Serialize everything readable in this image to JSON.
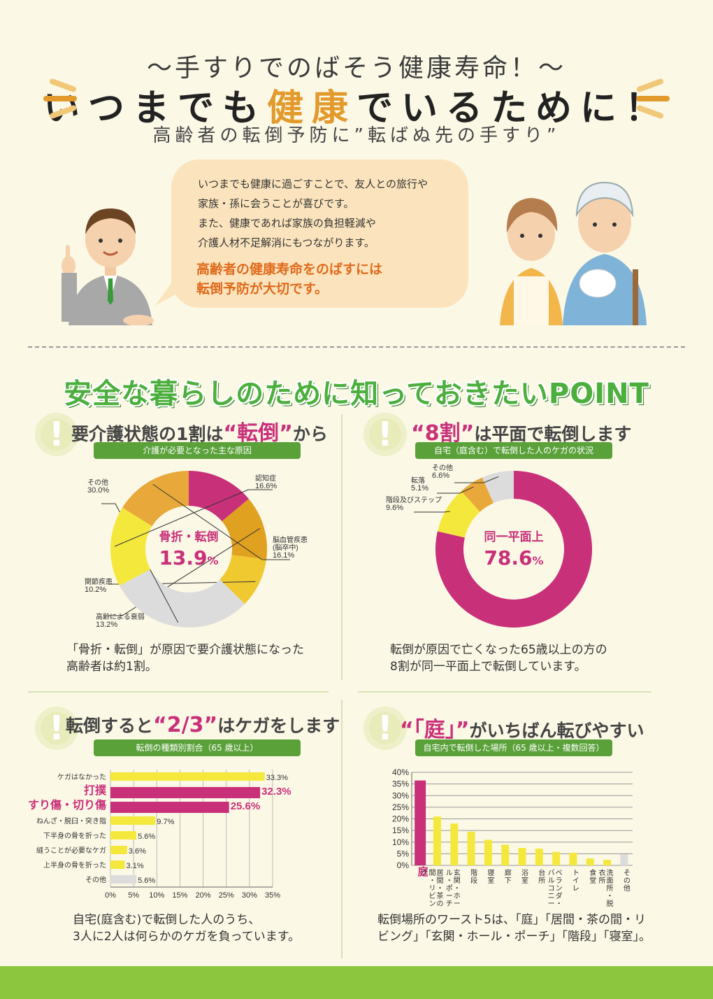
{
  "header": {
    "subtitle": "～手すりでのばそう健康寿命！～",
    "title_part1": "いつまでも",
    "title_highlight": "健康",
    "title_part2": "でいるために！",
    "tagline": "高齢者の転倒予防に”転ばぬ先の手すり”"
  },
  "speech": {
    "lines": [
      "いつまでも健康に過ごすことで、友人との旅行や",
      "家族・孫に会うことが喜びです。",
      "また、健康であれば家族の負担軽減や",
      "介護人材不足解消にもつながります。"
    ],
    "emphasis": [
      "高齢者の健康寿命をのばすには",
      "転倒予防が大切です。"
    ]
  },
  "section_title": "安全な暮らしのために知っておきたいPOINT",
  "points": [
    {
      "title_pre": "要介護状態の1割は",
      "title_key": "“転倒”",
      "title_post": "から",
      "bar": "介護が必要となった主な原因",
      "caption": [
        "「骨折・転倒」が原因で要介護状態になった",
        "高齢者は約1割。"
      ]
    },
    {
      "title_pre": "",
      "title_key": "“8割”",
      "title_post": "は平面で転倒します",
      "bar": "自宅（庭含む）で転倒した人のケガの状況",
      "caption": [
        "転倒が原因で亡くなった65歳以上の方の",
        "8割が同一平面上で転倒しています。"
      ]
    },
    {
      "title_pre": "転倒すると",
      "title_key": "“2/3”",
      "title_post": "はケガをします",
      "bar": "転倒の種類別割合（65 歳以上）",
      "caption": [
        "自宅(庭含む)で転倒した人のうち、",
        "3人に2人は何らかのケガを負っています。"
      ]
    },
    {
      "title_pre": "",
      "title_key": "“「庭」”",
      "title_post": "がいちばん転びやすい",
      "bar": "自宅内で転倒した場所（65 歳以上・複数回答）",
      "caption": [
        "転倒場所のワースト5は、「庭」「居間・茶の間・リ",
        "ビング」「玄関・ホール・ポーチ」「階段」「寝室」。"
      ]
    }
  ],
  "chart_data": [
    {
      "type": "pie",
      "center_label": "骨折・転倒",
      "center_value": "13.9",
      "center_unit": "%",
      "slices": [
        {
          "label": "骨折・転倒",
          "value": 13.9,
          "color": "#c9307a"
        },
        {
          "label": "高齢による衰弱",
          "value": 13.2,
          "color": "#e0a020"
        },
        {
          "label": "関節疾患",
          "value": 10.2,
          "color": "#f0c830"
        },
        {
          "label": "その他",
          "value": 30.0,
          "color": "#dcdcdc"
        },
        {
          "label": "認知症",
          "value": 16.6,
          "color": "#f5e83c"
        },
        {
          "label": "脳血管疾患\n(脳卒中)",
          "value": 16.1,
          "color": "#e8a83a"
        }
      ]
    },
    {
      "type": "pie",
      "center_label": "同一平面上",
      "center_value": "78.6",
      "center_unit": "%",
      "slices": [
        {
          "label": "同一平面上",
          "value": 78.6,
          "color": "#c9307a"
        },
        {
          "label": "階段及びステップ",
          "value": 9.6,
          "color": "#f5e83c"
        },
        {
          "label": "転落",
          "value": 5.1,
          "color": "#e8a83a"
        },
        {
          "label": "その他",
          "value": 6.6,
          "color": "#dcdcdc"
        }
      ]
    },
    {
      "type": "bar",
      "orientation": "horizontal",
      "categories": [
        "ケガはなかった",
        "打撲",
        "すり傷・切り傷",
        "ねんざ・脱臼・突き指",
        "下半身の骨を折った",
        "縫うことが必要なケガ",
        "上半身の骨を折った",
        "その他"
      ],
      "values": [
        33.3,
        32.3,
        25.6,
        9.7,
        5.6,
        3.6,
        3.1,
        5.6
      ],
      "value_labels": [
        "33.3%",
        "32.3%",
        "25.6%",
        "9.7%",
        "5.6%",
        "3.6%",
        "3.1%",
        "5.6%"
      ],
      "colors": [
        "#f5e83c",
        "#c9307a",
        "#c9307a",
        "#f5e83c",
        "#f5e83c",
        "#f5e83c",
        "#f5e83c",
        "#dcdcdc"
      ],
      "xticks": [
        "0%",
        "5%",
        "10%",
        "15%",
        "20%",
        "25%",
        "30%",
        "35%"
      ],
      "xlim": [
        0,
        35
      ],
      "grid": true
    },
    {
      "type": "bar",
      "orientation": "vertical",
      "categories": [
        "庭",
        "居間・茶の間・リビング",
        "玄関・ホール・ポーチ",
        "階段",
        "寝室",
        "廊下",
        "浴室",
        "台所",
        "ベランダ・バルコニー",
        "トイレ",
        "食堂",
        "洗面所・脱衣所",
        "その他"
      ],
      "values": [
        36.5,
        21,
        18,
        14.5,
        11,
        8.9,
        7.5,
        7.2,
        5.8,
        5.4,
        3,
        2.4,
        4.8
      ],
      "colors": [
        "#c9307a",
        "#f5e83c",
        "#f5e83c",
        "#f5e83c",
        "#f5e83c",
        "#f5e83c",
        "#f5e83c",
        "#f5e83c",
        "#f5e83c",
        "#f5e83c",
        "#f5e83c",
        "#f5e83c",
        "#dcdcdc"
      ],
      "yticks": [
        "40%",
        "35%",
        "30%",
        "25%",
        "20%",
        "15%",
        "10%",
        "5%",
        "0%"
      ],
      "ylim": [
        0,
        40
      ],
      "grid": true
    }
  ],
  "colors": {
    "accent_magenta": "#c9307a",
    "accent_green": "#5aa13a",
    "title_orange": "#e39a2c"
  }
}
